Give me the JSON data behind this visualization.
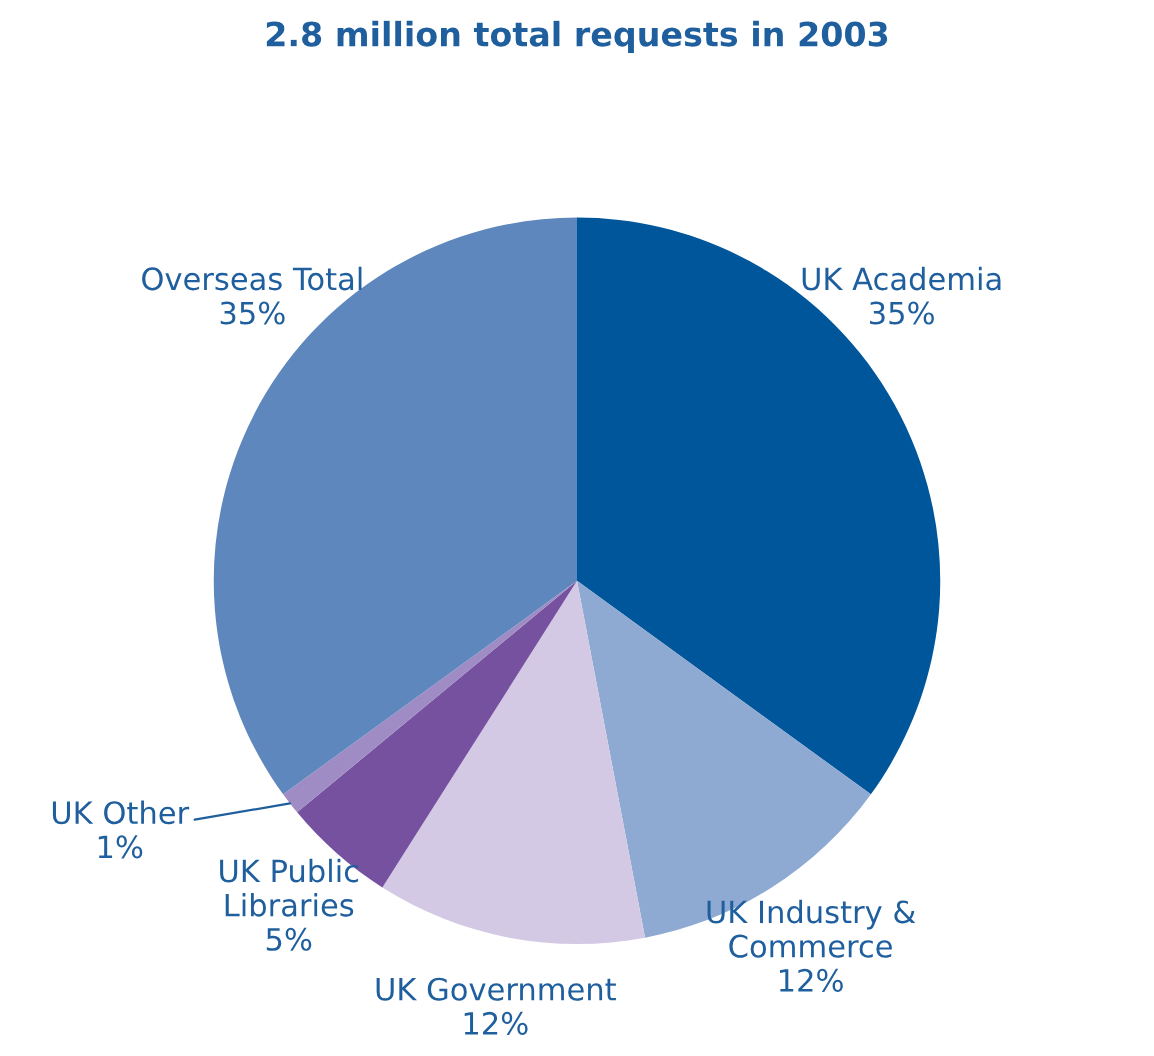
{
  "chart_data": {
    "type": "pie",
    "title": "2.8 million total requests in 2003",
    "categories": [
      "UK Academia",
      "UK Industry &\nCommerce",
      "UK Government",
      "UK Public\nLibraries",
      "UK Other",
      "Overseas Total"
    ],
    "values": [
      35,
      12,
      12,
      5,
      1,
      35
    ],
    "colors": [
      "#00569a",
      "#8faad2",
      "#d4c9e4",
      "#7651a0",
      "#a08cc4",
      "#5e87bd"
    ],
    "value_labels": [
      "35%",
      "12%",
      "12%",
      "5%",
      "1%",
      "35%"
    ]
  }
}
